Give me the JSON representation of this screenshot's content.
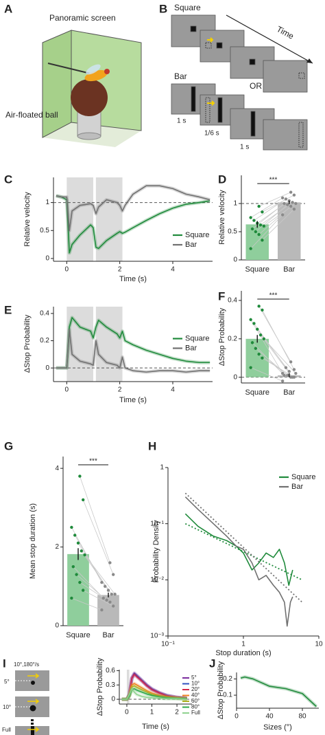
{
  "diagram_a": {
    "panel": "A",
    "screen_label": "Panoramic screen",
    "ball_label": "Air-floated ball"
  },
  "diagram_b": {
    "panel": "B",
    "square_label": "Square",
    "time_label": "Time",
    "bar_label": "Bar",
    "or_label": "OR",
    "first_duration": "1 s",
    "gap_duration": "1/6 s",
    "second_duration": "1 s"
  },
  "diagram_i": {
    "panel": "I",
    "stimulus_label": "10°,180°/s",
    "size_labels": [
      "5°",
      "10°",
      "Full"
    ]
  },
  "chart_data": [
    {
      "type": "line",
      "panel": "C",
      "x": [
        -0.4,
        -0.2,
        0,
        0.1,
        0.2,
        0.5,
        0.9,
        1.0,
        1.1,
        1.2,
        1.5,
        1.9,
        2.0,
        2.1,
        2.2,
        2.5,
        3,
        3.5,
        4,
        4.5,
        5,
        5.4
      ],
      "xlim": [
        -0.5,
        5.5
      ],
      "xticks": [
        0,
        2,
        4
      ],
      "ylim": [
        -0.05,
        1.45
      ],
      "yticks": [
        0,
        0.5,
        1
      ],
      "xlabel": "Time (s)",
      "ylabel": "Relative velocity",
      "spans": [
        [
          0,
          1
        ],
        [
          1.1,
          2.1
        ]
      ],
      "span_color": "#dcdcdc",
      "hline": 1,
      "halo": true,
      "legend": "lower right",
      "series": [
        {
          "name": "Square",
          "color": "#1f8a3b",
          "values": [
            1.12,
            1.1,
            1.05,
            0.1,
            0.25,
            0.42,
            0.6,
            0.55,
            0.2,
            0.18,
            0.32,
            0.45,
            0.48,
            0.45,
            0.47,
            0.55,
            0.68,
            0.8,
            0.9,
            0.97,
            1.0,
            1.03
          ]
        },
        {
          "name": "Bar",
          "color": "#707070",
          "values": [
            1.12,
            1.1,
            1.1,
            0.5,
            0.85,
            0.95,
            0.98,
            0.95,
            0.8,
            0.92,
            1.05,
            1.0,
            0.95,
            0.85,
            0.95,
            1.15,
            1.3,
            1.3,
            1.25,
            1.15,
            1.1,
            1.05
          ]
        }
      ]
    },
    {
      "type": "bar",
      "panel": "D",
      "categories": [
        "Square",
        "Bar"
      ],
      "values": [
        0.63,
        1.02
      ],
      "errors": [
        0.06,
        0.03
      ],
      "colors": [
        "#8fce9c",
        "#b9b9b9"
      ],
      "point_colors": [
        "#1f8a3b",
        "#8a8a8a"
      ],
      "points": [
        [
          0.2,
          0.35,
          0.45,
          0.5,
          0.55,
          0.6,
          0.62,
          0.65,
          0.7,
          0.75,
          0.85,
          0.95
        ],
        [
          0.8,
          0.9,
          0.95,
          0.98,
          1.0,
          1.0,
          1.02,
          1.05,
          1.08,
          1.1,
          1.15,
          1.2
        ]
      ],
      "ylim": [
        0,
        1.5
      ],
      "yticks": [
        0,
        0.5,
        1
      ],
      "ylabel": "Relative velocity",
      "significance": "***",
      "hline": 1
    },
    {
      "type": "line",
      "panel": "E",
      "x": [
        -0.4,
        -0.2,
        0,
        0.1,
        0.2,
        0.5,
        0.9,
        1.0,
        1.1,
        1.2,
        1.5,
        1.9,
        2.0,
        2.1,
        2.2,
        2.5,
        3,
        3.5,
        4,
        4.5,
        5,
        5.4
      ],
      "xlim": [
        -0.5,
        5.5
      ],
      "xticks": [
        0,
        2,
        4
      ],
      "ylim": [
        -0.1,
        0.45
      ],
      "yticks": [
        0,
        0.2,
        0.4
      ],
      "xlabel": "Time (s)",
      "ylabel": "ΔStop Probability",
      "spans": [
        [
          0,
          1
        ],
        [
          1.1,
          2.1
        ]
      ],
      "span_color": "#dcdcdc",
      "hline": 0,
      "halo": true,
      "legend": "center right",
      "series": [
        {
          "name": "Square",
          "color": "#1f8a3b",
          "values": [
            0,
            0,
            0,
            0.3,
            0.37,
            0.3,
            0.27,
            0.22,
            0.3,
            0.35,
            0.3,
            0.25,
            0.22,
            0.27,
            0.2,
            0.17,
            0.13,
            0.1,
            0.07,
            0.05,
            0.04,
            0.04
          ]
        },
        {
          "name": "Bar",
          "color": "#707070",
          "values": [
            0,
            0,
            0,
            0.28,
            0.1,
            0.05,
            0.03,
            0.02,
            0.2,
            0.1,
            0.04,
            0.02,
            0.0,
            0.08,
            0.0,
            -0.02,
            -0.03,
            -0.02,
            -0.02,
            -0.03,
            -0.02,
            -0.02
          ]
        }
      ]
    },
    {
      "type": "bar",
      "panel": "F",
      "categories": [
        "Square",
        "Bar"
      ],
      "values": [
        0.2,
        0.01
      ],
      "errors": [
        0.02,
        0.01
      ],
      "colors": [
        "#8fce9c",
        "#b9b9b9"
      ],
      "point_colors": [
        "#1f8a3b",
        "#8a8a8a"
      ],
      "points": [
        [
          0.05,
          0.1,
          0.12,
          0.15,
          0.18,
          0.2,
          0.22,
          0.25,
          0.28,
          0.3,
          0.35,
          0.37
        ],
        [
          -0.02,
          0,
          0,
          0.01,
          0.01,
          0.02,
          0,
          0.03,
          0.05,
          0.02,
          0.04,
          0.08
        ]
      ],
      "ylim": [
        -0.03,
        0.45
      ],
      "yticks": [
        0,
        0.2,
        0.4
      ],
      "ylabel": "ΔStop Probability",
      "significance": "***",
      "hline": 0
    },
    {
      "type": "bar",
      "panel": "G",
      "categories": [
        "Square",
        "Bar"
      ],
      "values": [
        1.82,
        0.78
      ],
      "errors": [
        0.15,
        0.06
      ],
      "colors": [
        "#8fce9c",
        "#b9b9b9"
      ],
      "point_colors": [
        "#1f8a3b",
        "#8a8a8a"
      ],
      "points": [
        [
          0.7,
          0.9,
          1.1,
          1.3,
          1.5,
          1.8,
          1.9,
          2.1,
          2.3,
          2.5,
          3.2,
          3.8
        ],
        [
          0.4,
          0.5,
          0.6,
          0.65,
          0.7,
          0.8,
          0.8,
          0.9,
          1.0,
          1.1,
          1.3,
          1.6
        ]
      ],
      "ylim": [
        0,
        4.3
      ],
      "yticks": [
        0,
        2,
        4
      ],
      "ylabel": "Mean stop duration (s)",
      "significance": "***"
    },
    {
      "type": "line",
      "panel": "H",
      "log_x": true,
      "log_y": true,
      "xlim": [
        0.1,
        10
      ],
      "xticks": [
        {
          "value": 0.1,
          "label": "10⁻¹"
        },
        1,
        10
      ],
      "ylim": [
        0.001,
        1
      ],
      "yticks": [
        {
          "value": 0.001,
          "label": "10⁻³"
        },
        {
          "value": 0.01,
          "label": "10⁻²"
        },
        {
          "value": 0.1,
          "label": "10⁻¹"
        },
        1
      ],
      "xlabel": "Stop duration (s)",
      "ylabel": "Probability Density",
      "legend": "upper right",
      "series": [
        {
          "name": "Square",
          "color": "#1f8a3b",
          "x": [
            0.17,
            0.25,
            0.4,
            0.6,
            0.8,
            1,
            1.3,
            1.6,
            2,
            2.5,
            3,
            3.5,
            4,
            4.5
          ],
          "values": [
            0.15,
            0.09,
            0.06,
            0.05,
            0.04,
            0.03,
            0.015,
            0.02,
            0.03,
            0.025,
            0.035,
            0.02,
            0.008,
            0.015
          ]
        },
        {
          "name": "Bar",
          "color": "#707070",
          "x": [
            0.17,
            0.25,
            0.4,
            0.6,
            0.8,
            1,
            1.3,
            1.6,
            2,
            2.5,
            3,
            3.5,
            3.8,
            4.2,
            4.5
          ],
          "values": [
            0.3,
            0.18,
            0.1,
            0.06,
            0.04,
            0.035,
            0.02,
            0.01,
            0.012,
            0.008,
            0.006,
            0.004,
            0.0015,
            0.004,
            0.005
          ]
        },
        {
          "color": "#1f8a3b",
          "dash": true,
          "x": [
            0.17,
            6
          ],
          "values": [
            0.1,
            0.01
          ]
        },
        {
          "color": "#707070",
          "dash": true,
          "x": [
            0.17,
            6
          ],
          "values": [
            0.35,
            0.004
          ]
        }
      ]
    },
    {
      "type": "line",
      "x": [
        -0.2,
        0,
        0.1,
        0.2,
        0.3,
        0.4,
        0.6,
        0.8,
        1.0,
        1.3,
        1.6,
        2.0,
        2.4
      ],
      "xlim": [
        -0.3,
        2.6
      ],
      "xticks": [
        0,
        1,
        2
      ],
      "ylim": [
        -0.1,
        0.62
      ],
      "yticks": [
        0,
        0.3,
        0.6
      ],
      "xlabel": "Time (s)",
      "ylabel": "ΔStop Probability",
      "spans": [
        [
          0,
          0.1
        ]
      ],
      "span_color": "#dcdcdc",
      "hline": 0,
      "halo": true,
      "legend": "outside right",
      "series": [
        {
          "name": "5°",
          "color": "#7b2d9e",
          "values": [
            0,
            0,
            0.1,
            0.45,
            0.55,
            0.5,
            0.4,
            0.3,
            0.22,
            0.14,
            0.08,
            0.04,
            0.02
          ]
        },
        {
          "name": "10°",
          "color": "#3050c0",
          "values": [
            0,
            0,
            0.1,
            0.43,
            0.53,
            0.49,
            0.39,
            0.29,
            0.21,
            0.13,
            0.08,
            0.04,
            0.02
          ]
        },
        {
          "name": "20°",
          "color": "#d6264a",
          "values": [
            0,
            0,
            0.1,
            0.44,
            0.52,
            0.47,
            0.38,
            0.28,
            0.2,
            0.13,
            0.07,
            0.04,
            0.02
          ]
        },
        {
          "name": "40°",
          "color": "#f08020",
          "values": [
            0,
            0,
            0.08,
            0.3,
            0.33,
            0.3,
            0.24,
            0.18,
            0.13,
            0.08,
            0.05,
            0.03,
            0.01
          ]
        },
        {
          "name": "60°",
          "color": "#b0b020",
          "values": [
            0,
            0,
            0.07,
            0.26,
            0.28,
            0.25,
            0.2,
            0.15,
            0.1,
            0.06,
            0.04,
            0.02,
            0.01
          ]
        },
        {
          "name": "80°",
          "color": "#2ea84a",
          "values": [
            0,
            0,
            0.06,
            0.2,
            0.22,
            0.19,
            0.15,
            0.11,
            0.08,
            0.05,
            0.03,
            0.02,
            0.01
          ]
        },
        {
          "name": "Full",
          "color": "#8fd28f",
          "values": [
            0,
            0,
            0.1,
            0.22,
            0.15,
            0.1,
            0.06,
            0.04,
            0.03,
            0.02,
            0.01,
            0.01,
            0
          ]
        }
      ]
    },
    {
      "type": "line",
      "panel": "J",
      "x": [
        5,
        10,
        20,
        40,
        60,
        80,
        97
      ],
      "xlim": [
        0,
        100
      ],
      "xticks": [
        0,
        40,
        80
      ],
      "ylim": [
        0.02,
        0.24
      ],
      "yticks": [
        0.1,
        0.2
      ],
      "xlabel": "Sizes (°)",
      "ylabel": "ΔStop Probability",
      "halo": true,
      "series": [
        {
          "color": "#1f8a3b",
          "values": [
            0.205,
            0.212,
            0.2,
            0.155,
            0.14,
            0.11,
            0.03
          ]
        }
      ]
    }
  ]
}
